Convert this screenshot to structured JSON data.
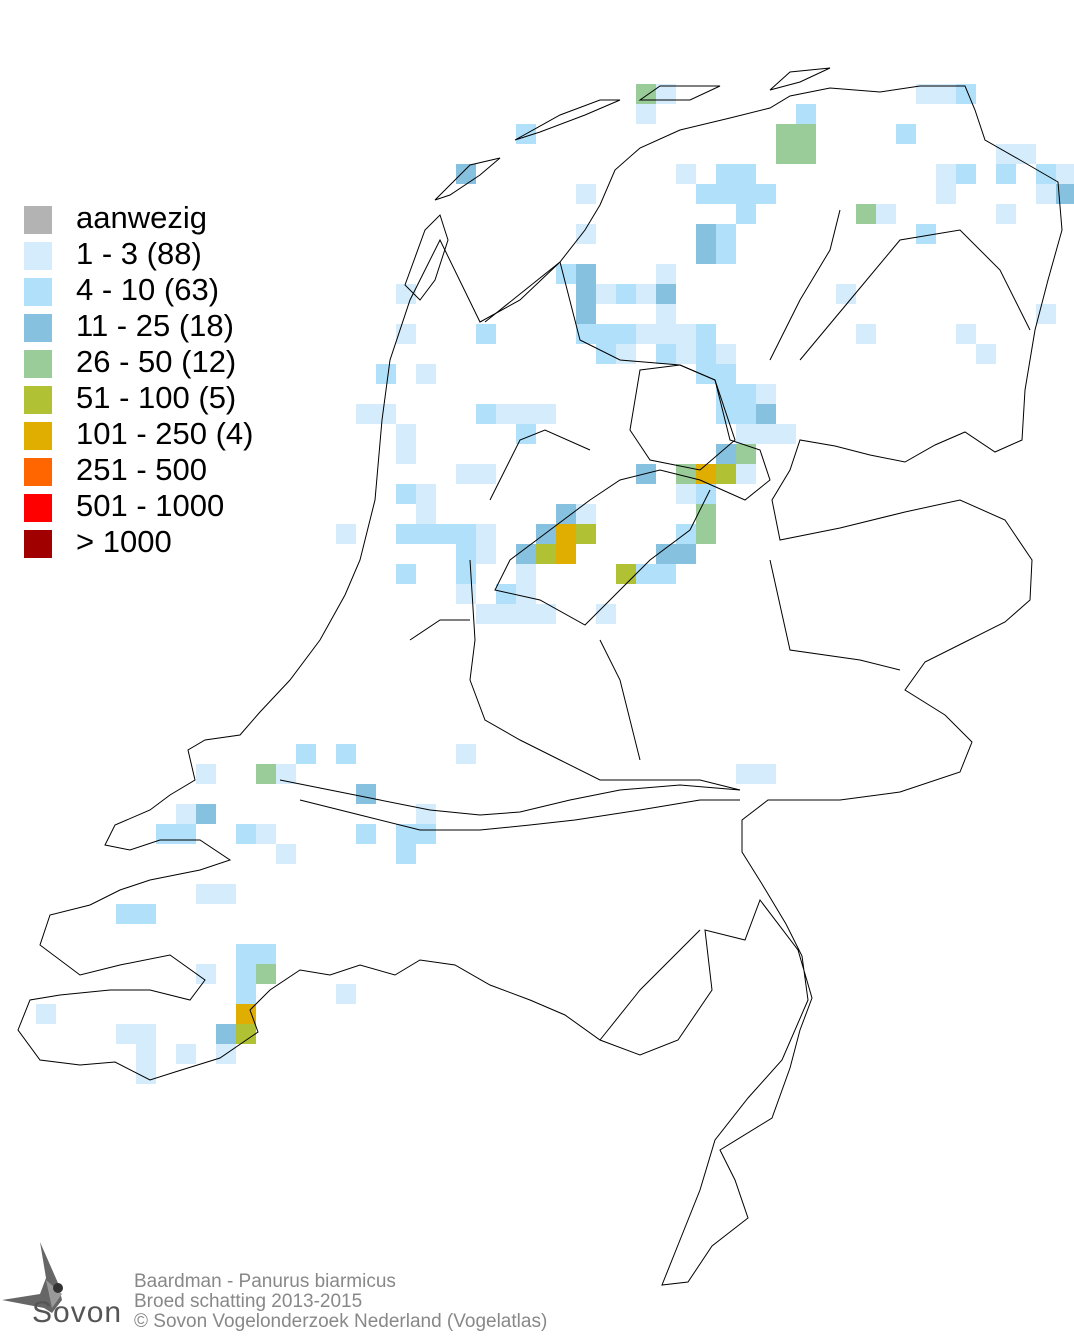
{
  "legend": {
    "items": [
      {
        "label": "aanwezig",
        "color": "#b3b3b3"
      },
      {
        "label": "1 - 3 (88)",
        "color": "#d4ecfb"
      },
      {
        "label": "4 - 10 (63)",
        "color": "#b0e0fa"
      },
      {
        "label": "11 - 25 (18)",
        "color": "#87c1e0"
      },
      {
        "label": "26 - 50 (12)",
        "color": "#99cc99"
      },
      {
        "label": "51 - 100 (5)",
        "color": "#b0c234"
      },
      {
        "label": "101 - 250 (4)",
        "color": "#e0ae00"
      },
      {
        "label": "251 - 500",
        "color": "#ff6600"
      },
      {
        "label": "501 - 1000",
        "color": "#ff0000"
      },
      {
        "label": "> 1000",
        "color": "#a00000"
      }
    ]
  },
  "footer": {
    "species": "Baardman - Panurus biarmicus",
    "subtitle": "Broed schatting 2013-2015",
    "copyright": "© Sovon Vogelonderzoek Nederland (Vogelatlas)"
  },
  "logo": {
    "text": "Sovon"
  }
}
